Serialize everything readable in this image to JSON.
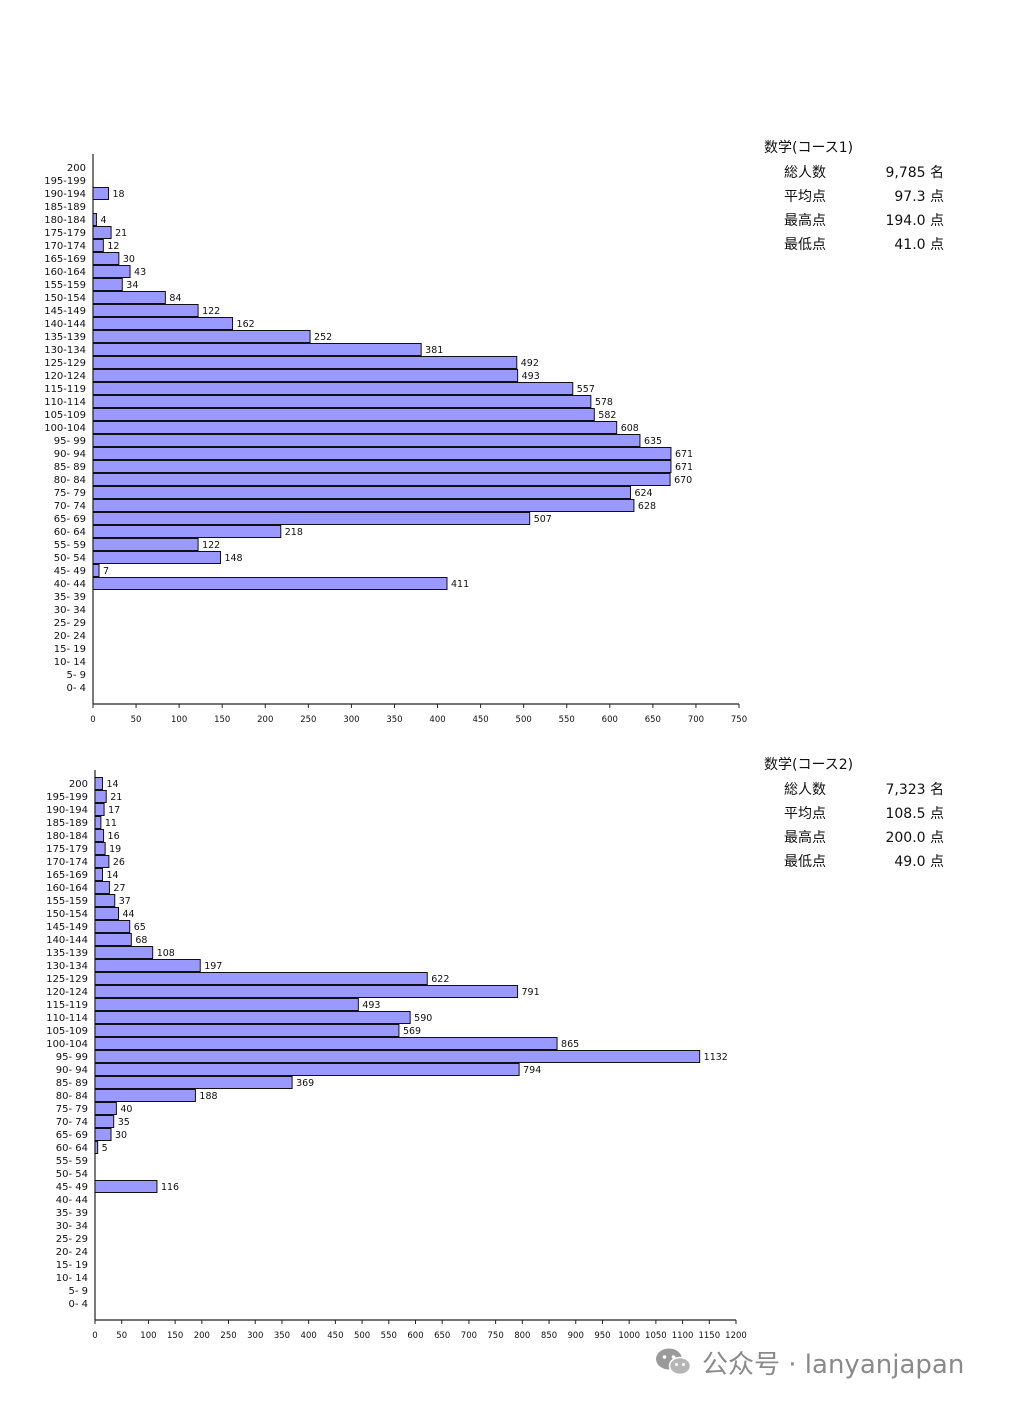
{
  "chart_data": [
    {
      "type": "bar",
      "orientation": "horizontal",
      "categories": [
        "200",
        "195-199",
        "190-194",
        "185-189",
        "180-184",
        "175-179",
        "170-174",
        "165-169",
        "160-164",
        "155-159",
        "150-154",
        "145-149",
        "140-144",
        "135-139",
        "130-134",
        "125-129",
        "120-124",
        "115-119",
        "110-114",
        "105-109",
        "100-104",
        "95- 99",
        "90- 94",
        "85- 89",
        "80- 84",
        "75- 79",
        "70- 74",
        "65- 69",
        "60- 64",
        "55- 59",
        "50- 54",
        "45- 49",
        "40- 44",
        "35- 39",
        "30- 34",
        "25- 29",
        "20- 24",
        "15- 19",
        "10- 14",
        "5- 9",
        "0- 4"
      ],
      "values": [
        0,
        0,
        18,
        0,
        4,
        21,
        12,
        30,
        43,
        34,
        84,
        122,
        162,
        252,
        381,
        492,
        493,
        557,
        578,
        582,
        608,
        635,
        671,
        671,
        670,
        624,
        628,
        507,
        218,
        122,
        148,
        7,
        411,
        0,
        0,
        0,
        0,
        0,
        0,
        0,
        0
      ],
      "xlim": [
        0,
        750
      ],
      "xticks": [
        0,
        50,
        100,
        150,
        200,
        250,
        300,
        350,
        400,
        450,
        500,
        550,
        600,
        650,
        700,
        750
      ],
      "bar_color": "#9999ff",
      "grid": false
    },
    {
      "type": "bar",
      "orientation": "horizontal",
      "categories": [
        "200",
        "195-199",
        "190-194",
        "185-189",
        "180-184",
        "175-179",
        "170-174",
        "165-169",
        "160-164",
        "155-159",
        "150-154",
        "145-149",
        "140-144",
        "135-139",
        "130-134",
        "125-129",
        "120-124",
        "115-119",
        "110-114",
        "105-109",
        "100-104",
        "95- 99",
        "90- 94",
        "85- 89",
        "80- 84",
        "75- 79",
        "70- 74",
        "65- 69",
        "60- 64",
        "55- 59",
        "50- 54",
        "45- 49",
        "40- 44",
        "35- 39",
        "30- 34",
        "25- 29",
        "20- 24",
        "15- 19",
        "10- 14",
        "5- 9",
        "0- 4"
      ],
      "values": [
        14,
        21,
        17,
        11,
        16,
        19,
        26,
        14,
        27,
        37,
        44,
        65,
        68,
        108,
        197,
        622,
        791,
        493,
        590,
        569,
        865,
        1132,
        794,
        369,
        188,
        40,
        35,
        30,
        5,
        0,
        0,
        116,
        0,
        0,
        0,
        0,
        0,
        0,
        0,
        0,
        0
      ],
      "xlim": [
        0,
        1200
      ],
      "xticks": [
        0,
        50,
        100,
        150,
        200,
        250,
        300,
        350,
        400,
        450,
        500,
        550,
        600,
        650,
        700,
        750,
        800,
        850,
        900,
        950,
        1000,
        1050,
        1100,
        1150,
        1200
      ],
      "bar_color": "#9999ff",
      "grid": false
    }
  ],
  "stats": [
    {
      "title": "数学(コース1)",
      "rows": [
        {
          "label": "総人数",
          "value": "9,785 名"
        },
        {
          "label": "平均点",
          "value": "97.3 点"
        },
        {
          "label": "最高点",
          "value": "194.0 点"
        },
        {
          "label": "最低点",
          "value": "41.0 点"
        }
      ]
    },
    {
      "title": "数学(コース2)",
      "rows": [
        {
          "label": "総人数",
          "value": "7,323 名"
        },
        {
          "label": "平均点",
          "value": "108.5 点"
        },
        {
          "label": "最高点",
          "value": "200.0 点"
        },
        {
          "label": "最低点",
          "value": "49.0 点"
        }
      ]
    }
  ],
  "watermark": {
    "text": "公众号 · lanyanjapan",
    "icon": "wechat-icon"
  }
}
